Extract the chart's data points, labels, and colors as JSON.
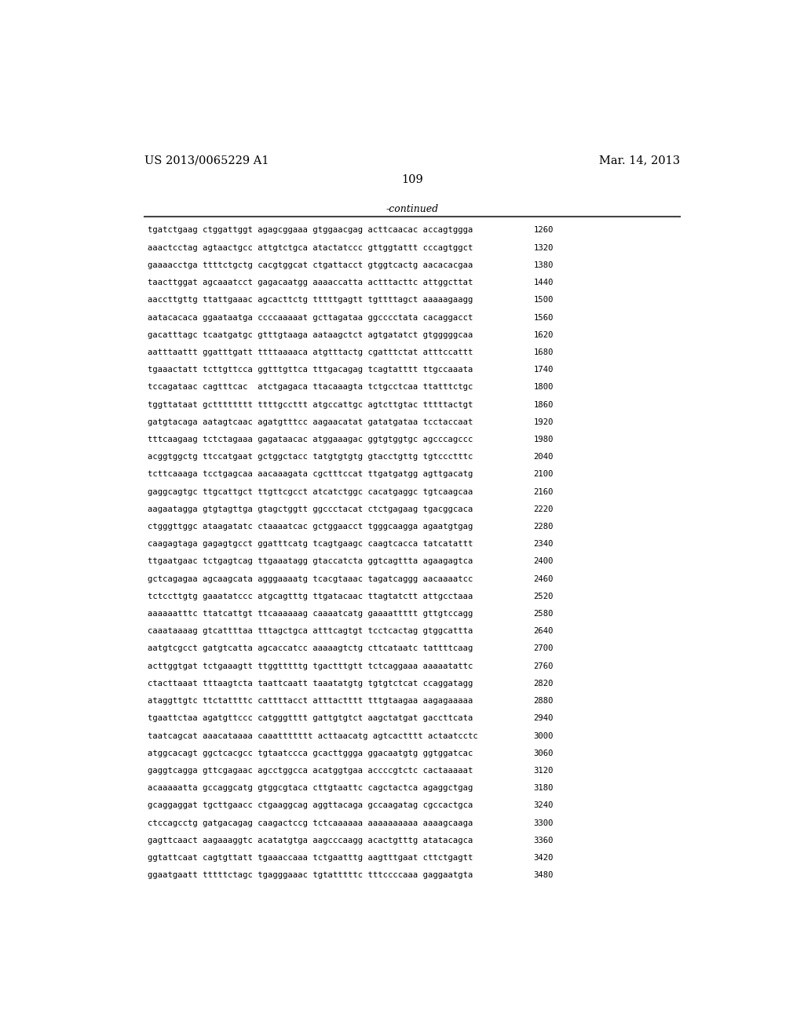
{
  "header_left": "US 2013/0065229 A1",
  "header_right": "Mar. 14, 2013",
  "page_number": "109",
  "continued_label": "-continued",
  "background_color": "#ffffff",
  "text_color": "#000000",
  "lines": [
    {
      "seq": "tgatctgaag ctggattggt agagcggaaa gtggaacgag acttcaacac accagtggga",
      "num": "1260"
    },
    {
      "seq": "aaactcctag agtaactgcc attgtctgca atactatccc gttggtattt cccagtggct",
      "num": "1320"
    },
    {
      "seq": "gaaaacctga ttttctgctg cacgtggcat ctgattacct gtggtcactg aacacacgaa",
      "num": "1380"
    },
    {
      "seq": "taacttggat agcaaatcct gagacaatgg aaaaccatta actttacttc attggcttat",
      "num": "1440"
    },
    {
      "seq": "aaccttgttg ttattgaaac agcacttctg tttttgagtt tgttttagct aaaaagaagg",
      "num": "1500"
    },
    {
      "seq": "aatacacaca ggaataatga ccccaaaaat gcttagataa ggcccctata cacaggacct",
      "num": "1560"
    },
    {
      "seq": "gacatttagc tcaatgatgc gtttgtaaga aataagctct agtgatatct gtgggggcaa",
      "num": "1620"
    },
    {
      "seq": "aatttaattt ggatttgatt ttttaaaaca atgtttactg cgatttctat atttccattt",
      "num": "1680"
    },
    {
      "seq": "tgaaactatt tcttgttcca ggtttgttca tttgacagag tcagtatttt ttgccaaata",
      "num": "1740"
    },
    {
      "seq": "tccagataac cagtttcac  atctgagaca ttacaaagta tctgcctcaa ttatttctgc",
      "num": "1800"
    },
    {
      "seq": "tggttataat gctttttttt ttttgccttt atgccattgc agtcttgtac tttttactgt",
      "num": "1860"
    },
    {
      "seq": "gatgtacaga aatagtcaac agatgtttcc aagaacatat gatatgataa tcctaccaat",
      "num": "1920"
    },
    {
      "seq": "tttcaagaag tctctagaaa gagataacac atggaaagac ggtgtggtgc agcccagccc",
      "num": "1980"
    },
    {
      "seq": "acggtggctg ttccatgaat gctggctacc tatgtgtgtg gtacctgttg tgtccctttc",
      "num": "2040"
    },
    {
      "seq": "tcttcaaaga tcctgagcaa aacaaagata cgctttccat ttgatgatgg agttgacatg",
      "num": "2100"
    },
    {
      "seq": "gaggcagtgc ttgcattgct ttgttcgcct atcatctggc cacatgaggc tgtcaagcaa",
      "num": "2160"
    },
    {
      "seq": "aagaatagga gtgtagttga gtagctggtt ggccctacat ctctgagaag tgacggcaca",
      "num": "2220"
    },
    {
      "seq": "ctgggttggc ataagatatc ctaaaatcac gctggaacct tgggcaagga agaatgtgag",
      "num": "2280"
    },
    {
      "seq": "caagagtaga gagagtgcct ggatttcatg tcagtgaagc caagtcacca tatcatattt",
      "num": "2340"
    },
    {
      "seq": "ttgaatgaac tctgagtcag ttgaaatagg gtaccatcta ggtcagttta agaagagtca",
      "num": "2400"
    },
    {
      "seq": "gctcagagaa agcaagcata agggaaaatg tcacgtaaac tagatcaggg aacaaaatcc",
      "num": "2460"
    },
    {
      "seq": "tctccttgtg gaaatatccc atgcagtttg ttgatacaac ttagtatctt attgcctaaa",
      "num": "2520"
    },
    {
      "seq": "aaaaaatttc ttatcattgt ttcaaaaaag caaaatcatg gaaaattttt gttgtccagg",
      "num": "2580"
    },
    {
      "seq": "caaataaaag gtcattttaa tttagctgca atttcagtgt tcctcactag gtggcattta",
      "num": "2640"
    },
    {
      "seq": "aatgtcgcct gatgtcatta agcaccatcc aaaaagtctg cttcataatc tattttcaag",
      "num": "2700"
    },
    {
      "seq": "acttggtgat tctgaaagtt ttggtttttg tgactttgtt tctcaggaaa aaaaatattc",
      "num": "2760"
    },
    {
      "seq": "ctacttaaat tttaagtcta taattcaatt taaatatgtg tgtgtctcat ccaggatagg",
      "num": "2820"
    },
    {
      "seq": "ataggttgtc ttctattttc cattttacct atttactttt tttgtaagaa aagagaaaaa",
      "num": "2880"
    },
    {
      "seq": "tgaattctaa agatgttccc catgggtttt gattgtgtct aagctatgat gaccttcata",
      "num": "2940"
    },
    {
      "seq": "taatcagcat aaacataaaa caaattttttt acttaacatg agtcactttt actaatcctc",
      "num": "3000"
    },
    {
      "seq": "atggcacagt ggctcacgcc tgtaatccca gcacttggga ggacaatgtg ggtggatcac",
      "num": "3060"
    },
    {
      "seq": "gaggtcagga gttcgagaac agcctggcca acatggtgaa accccgtctc cactaaaaat",
      "num": "3120"
    },
    {
      "seq": "acaaaaatta gccaggcatg gtggcgtaca cttgtaattc cagctactca agaggctgag",
      "num": "3180"
    },
    {
      "seq": "gcaggaggat tgcttgaacc ctgaaggcag aggttacaga gccaagatag cgccactgca",
      "num": "3240"
    },
    {
      "seq": "ctccagcctg gatgacagag caagactccg tctcaaaaaa aaaaaaaaaa aaaagcaaga",
      "num": "3300"
    },
    {
      "seq": "gagttcaact aagaaaggtc acatatgtga aagcccaagg acactgtttg atatacagca",
      "num": "3360"
    },
    {
      "seq": "ggtattcaat cagtgttatt tgaaaccaaa tctgaatttg aagtttgaat cttctgagtt",
      "num": "3420"
    },
    {
      "seq": "ggaatgaatt tttttctagc tgagggaaac tgtatttttc tttccccaaa gaggaatgta",
      "num": "3480"
    }
  ]
}
